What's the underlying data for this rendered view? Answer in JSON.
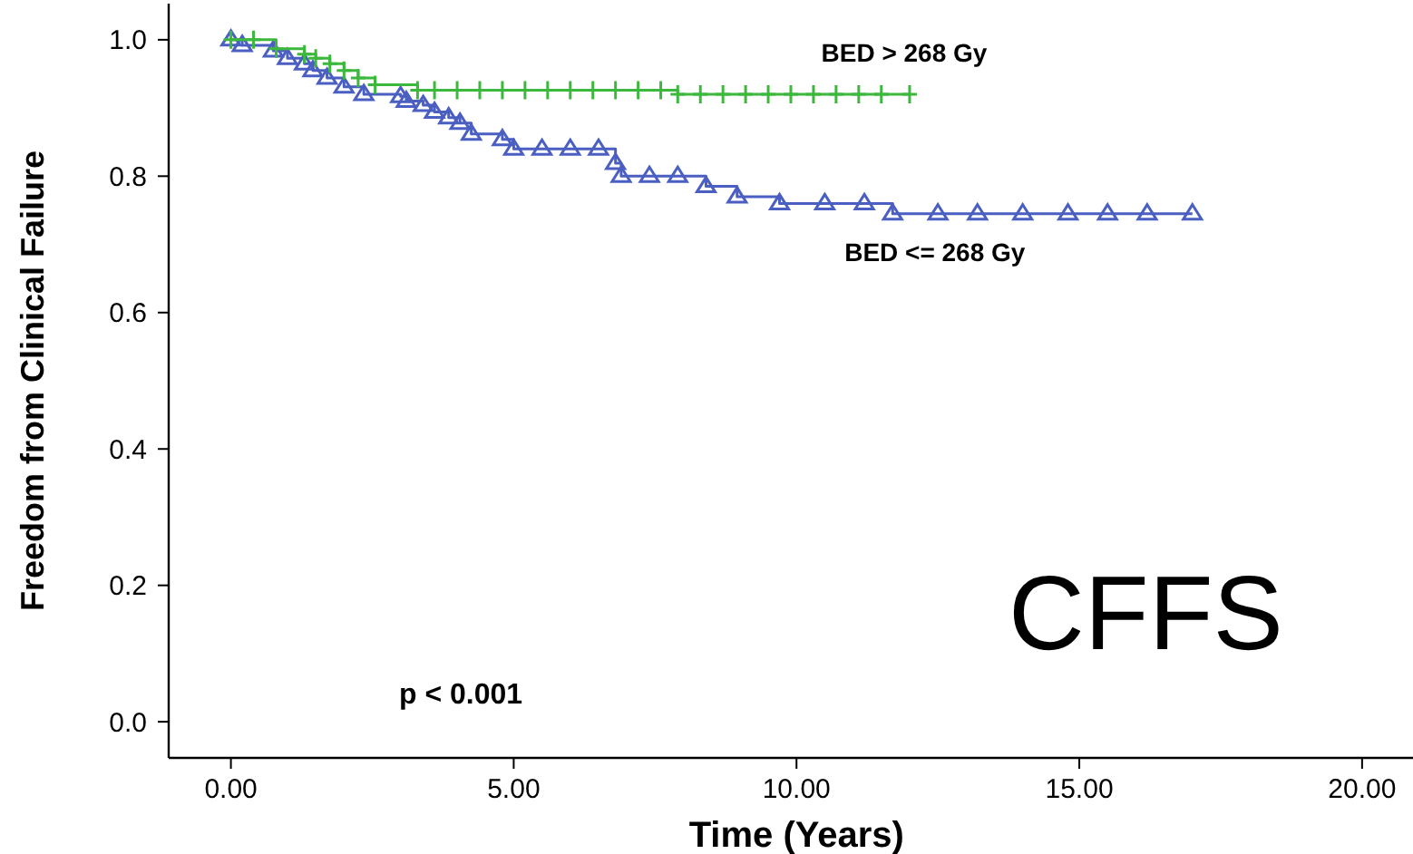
{
  "chart_data": {
    "type": "step",
    "xlabel": "Time (Years)",
    "ylabel": "Freedom from Clinical Failure",
    "xlim": [
      -1.1,
      20.9
    ],
    "ylim": [
      -0.053,
      1.053
    ],
    "xticks": [
      {
        "value": 0,
        "label": "0.00"
      },
      {
        "value": 5,
        "label": "5.00"
      },
      {
        "value": 10,
        "label": "10.00"
      },
      {
        "value": 15,
        "label": "15.00"
      },
      {
        "value": 20,
        "label": "20.00"
      }
    ],
    "yticks": [
      {
        "value": 0,
        "label": "0.0"
      },
      {
        "value": 0.2,
        "label": "0.2"
      },
      {
        "value": 0.4,
        "label": "0.4"
      },
      {
        "value": 0.6,
        "label": "0.6"
      },
      {
        "value": 0.8,
        "label": "0.8"
      },
      {
        "value": 1,
        "label": "1.0"
      }
    ],
    "grid": false,
    "series": [
      {
        "name": "BED > 268 Gy",
        "color": "#3cb83c",
        "marker": "cross",
        "x": [
          0,
          0.4,
          0.8,
          1.3,
          1.5,
          1.75,
          2.0,
          2.25,
          2.55,
          3.3,
          3.6,
          4.0,
          4.4,
          4.8,
          5.2,
          5.6,
          6.0,
          6.4,
          6.8,
          7.2,
          7.6,
          7.9,
          8.3,
          8.7,
          9.1,
          9.5,
          9.9,
          10.3,
          10.7,
          11.1,
          11.5,
          12.0
        ],
        "values": [
          1.0,
          1.0,
          0.987,
          0.979,
          0.973,
          0.965,
          0.955,
          0.944,
          0.934,
          0.926,
          0.926,
          0.926,
          0.926,
          0.926,
          0.926,
          0.926,
          0.926,
          0.926,
          0.926,
          0.926,
          0.926,
          0.92,
          0.92,
          0.92,
          0.92,
          0.92,
          0.92,
          0.92,
          0.92,
          0.92,
          0.92,
          0.92
        ]
      },
      {
        "name": "BED <= 268 Gy",
        "color": "#4a5fc1",
        "marker": "triangle",
        "x": [
          0,
          0.2,
          0.75,
          1.0,
          1.3,
          1.45,
          1.7,
          2.0,
          2.35,
          3.0,
          3.1,
          3.4,
          3.6,
          3.85,
          4.05,
          4.25,
          4.8,
          5.0,
          5.5,
          6.0,
          6.5,
          6.8,
          6.9,
          7.4,
          7.9,
          8.4,
          8.95,
          9.7,
          10.5,
          11.2,
          11.7,
          12.5,
          13.2,
          14.0,
          14.8,
          15.5,
          16.2,
          17.0
        ],
        "values": [
          1.0,
          0.992,
          0.984,
          0.973,
          0.965,
          0.955,
          0.944,
          0.931,
          0.92,
          0.917,
          0.91,
          0.904,
          0.894,
          0.886,
          0.878,
          0.862,
          0.854,
          0.84,
          0.84,
          0.84,
          0.84,
          0.819,
          0.8,
          0.8,
          0.8,
          0.785,
          0.77,
          0.76,
          0.76,
          0.76,
          0.745,
          0.745,
          0.745,
          0.745,
          0.745,
          0.745,
          0.745,
          0.745
        ]
      }
    ],
    "annotations": [
      "p < 0.001",
      "CFFS"
    ]
  }
}
